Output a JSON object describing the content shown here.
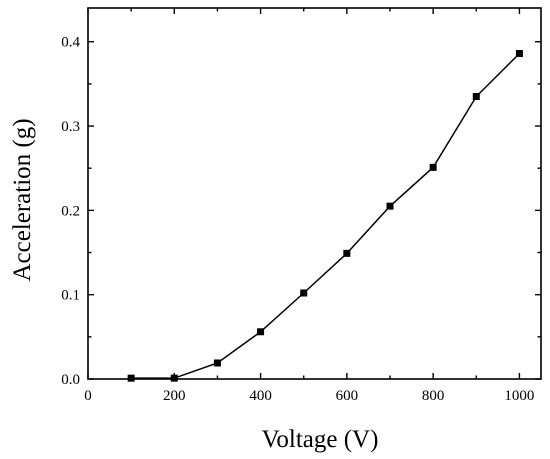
{
  "chart_data": {
    "type": "line",
    "title": "",
    "xlabel": "Voltage (V)",
    "ylabel": "Acceleration (g)",
    "xlim": [
      0,
      1050
    ],
    "ylim": [
      0,
      0.44
    ],
    "xticks": [
      0,
      200,
      400,
      600,
      800,
      1000
    ],
    "xtick_labels": [
      "0",
      "200",
      "400",
      "600",
      "800",
      "1000"
    ],
    "yticks": [
      0.0,
      0.1,
      0.2,
      0.3,
      0.4
    ],
    "ytick_labels": [
      "0.0",
      "0.1",
      "0.2",
      "0.3",
      "0.4"
    ],
    "grid": false,
    "legend": "none",
    "marker": "square",
    "color": "#000000",
    "series": [
      {
        "x": [
          100,
          200,
          300,
          400,
          500,
          600,
          700,
          800,
          900,
          1000
        ],
        "y": [
          0.001,
          0.001,
          0.019,
          0.056,
          0.102,
          0.149,
          0.205,
          0.251,
          0.335,
          0.386
        ]
      }
    ]
  }
}
